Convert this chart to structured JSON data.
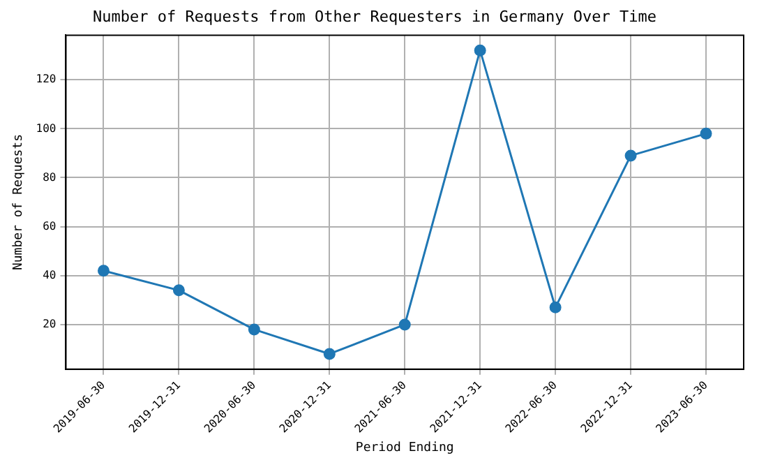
{
  "chart_data": {
    "type": "line",
    "title": "Number of Requests from Other Requesters in Germany Over Time",
    "xlabel": "Period Ending",
    "ylabel": "Number of Requests",
    "categories": [
      "2019-06-30",
      "2019-12-31",
      "2020-06-30",
      "2020-12-31",
      "2021-06-30",
      "2021-12-31",
      "2022-06-30",
      "2022-12-31",
      "2023-06-30"
    ],
    "series": [
      {
        "color": "#1f77b4",
        "values": [
          42,
          34,
          18,
          8,
          20,
          132,
          27,
          89,
          98
        ]
      }
    ],
    "ylim": [
      1.8,
      138.2
    ],
    "yticks": [
      20,
      40,
      60,
      80,
      100,
      120
    ],
    "grid": true,
    "marker": "circle",
    "line_style": "solid"
  }
}
